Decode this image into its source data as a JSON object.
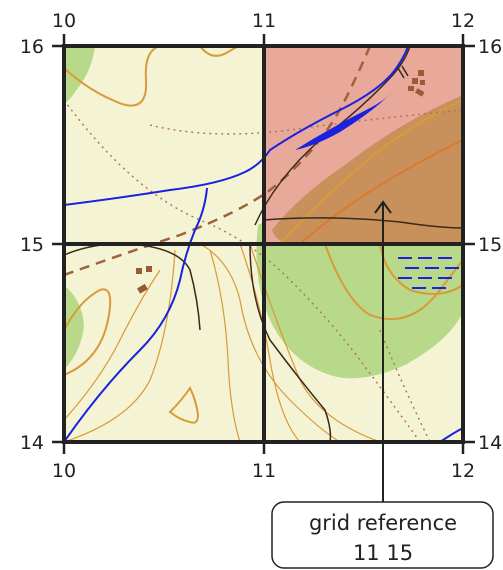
{
  "grid": {
    "x_labels": [
      "10",
      "11",
      "12"
    ],
    "y_labels": [
      "14",
      "15",
      "16"
    ]
  },
  "callout": {
    "line1": "grid reference",
    "line2": "11 15"
  },
  "highlighted_square": "11 15",
  "colors": {
    "land": "#f4f4d4",
    "vegetation": "#b9d98a",
    "highlight": "#e8a89a",
    "hill": "#c8915c",
    "contour": "#d99a3a",
    "water": "#1a22e0",
    "grid": "#222222",
    "buildings": "#9a5a34"
  }
}
